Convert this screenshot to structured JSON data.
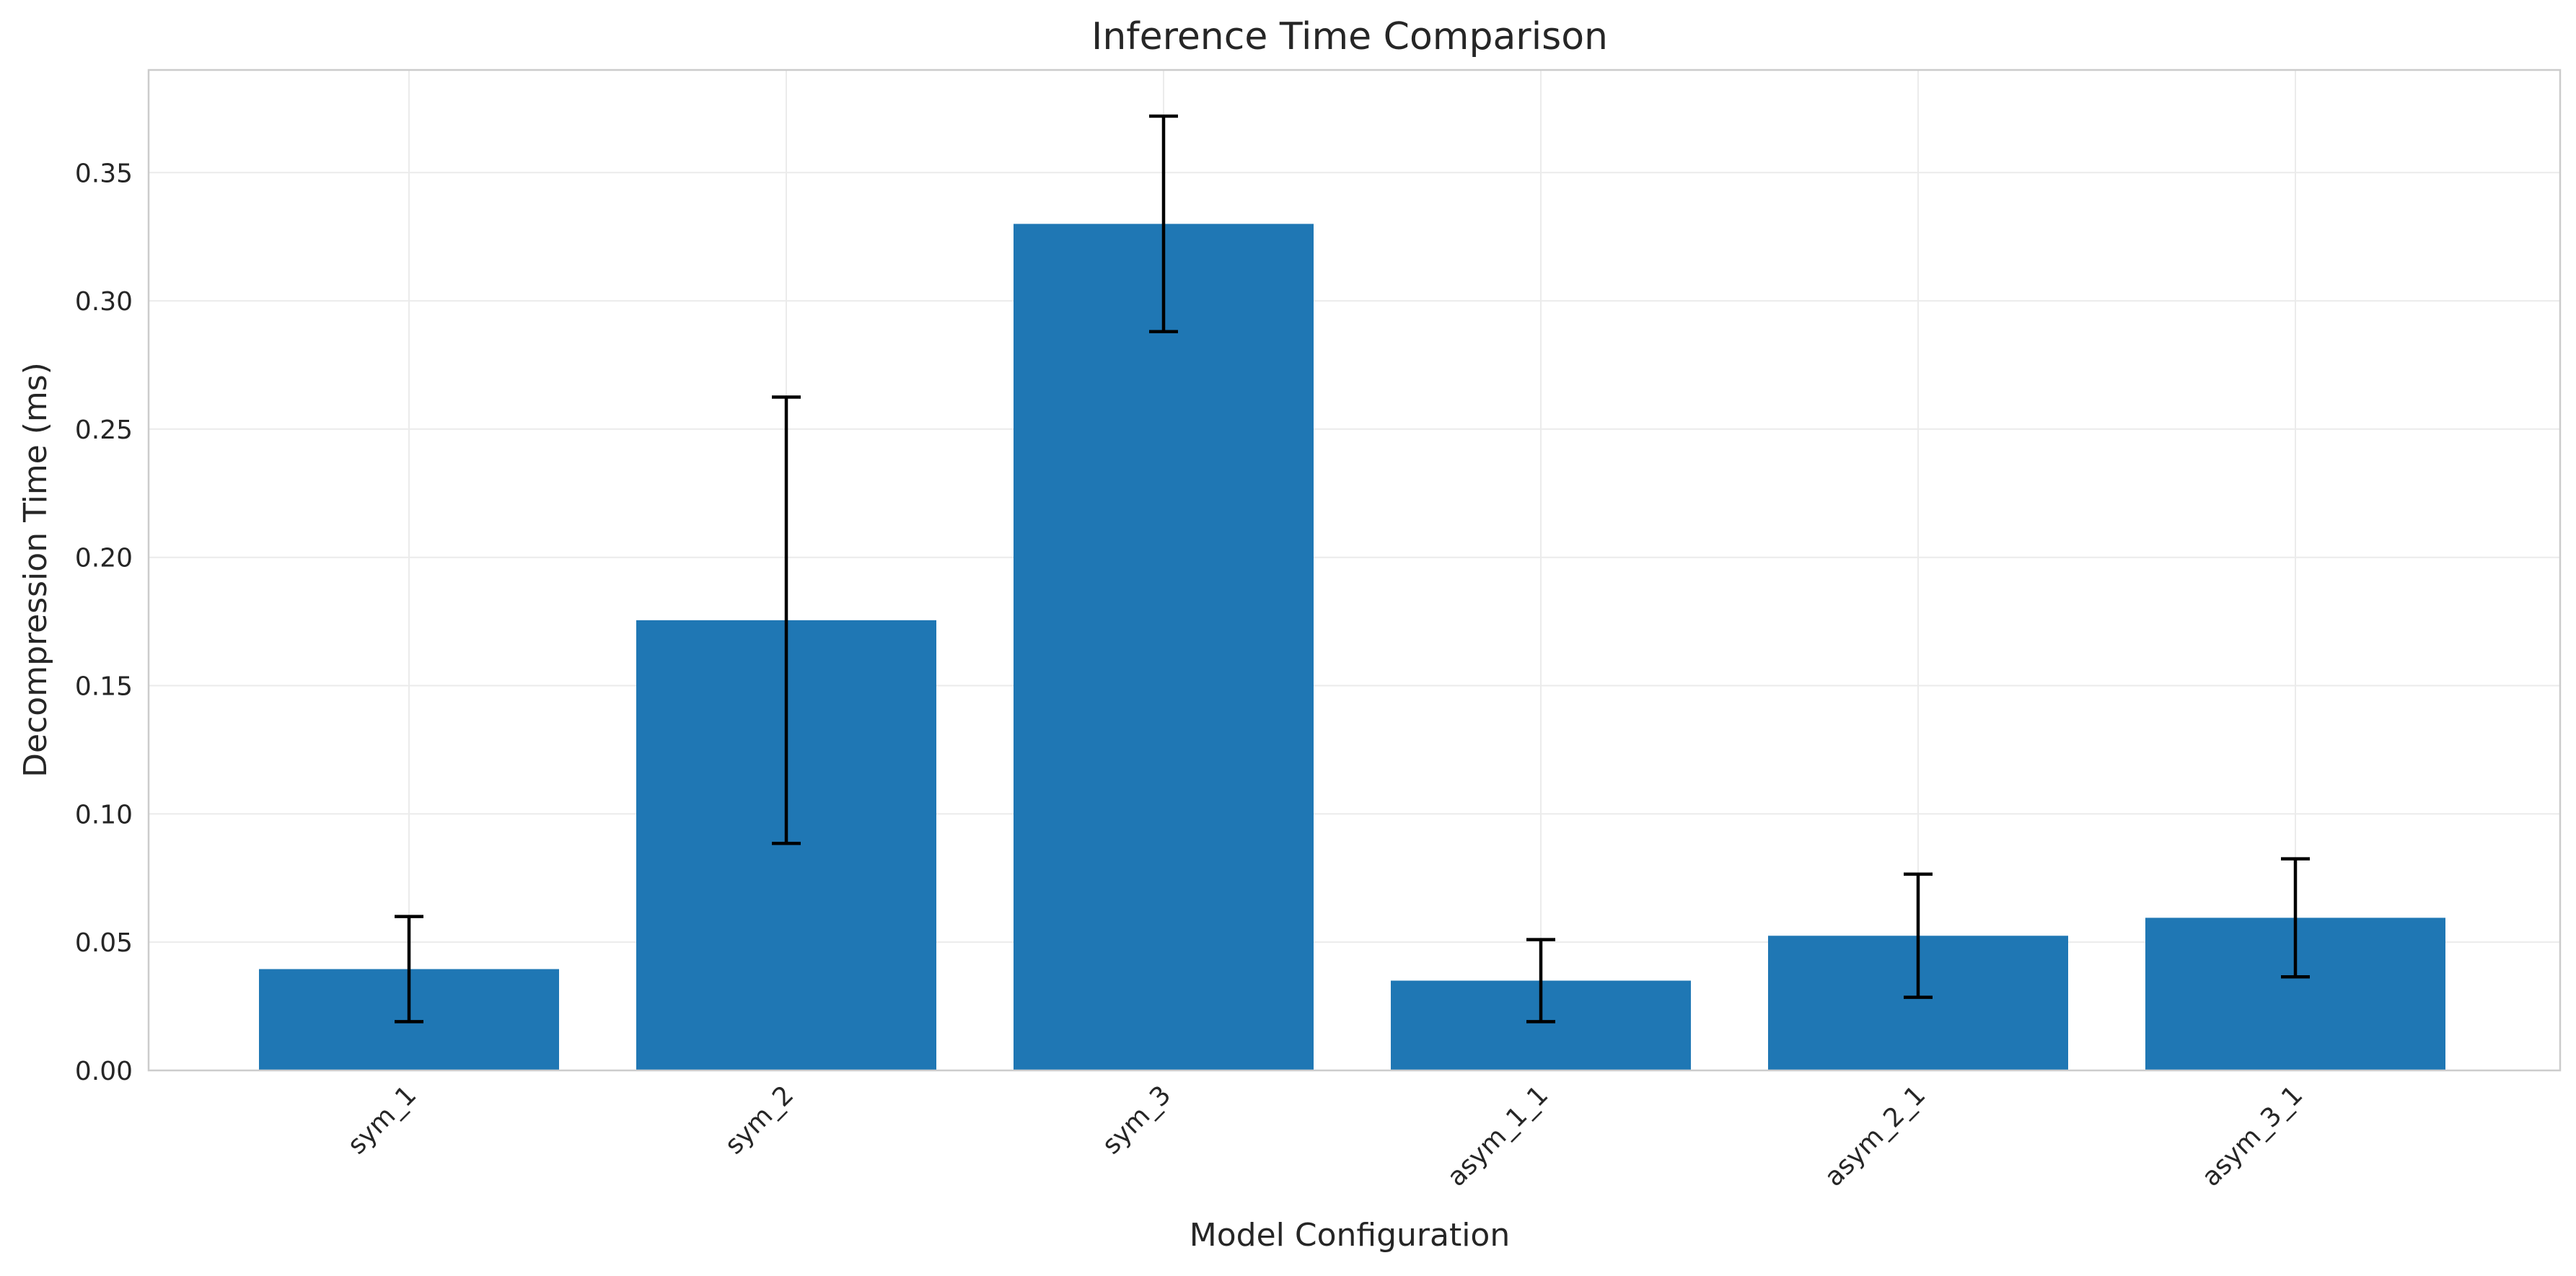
{
  "chart_data": {
    "type": "bar",
    "title": "Inference Time Comparison",
    "xlabel": "Model Configuration",
    "ylabel": "Decompression Time (ms)",
    "categories": [
      "sym_1",
      "sym_2",
      "sym_3",
      "asym_1_1",
      "asym_2_1",
      "asym_3_1"
    ],
    "values": [
      0.0395,
      0.1755,
      0.33,
      0.035,
      0.0525,
      0.0595
    ],
    "errors": [
      0.0205,
      0.087,
      0.042,
      0.016,
      0.024,
      0.023
    ],
    "ylim": [
      0,
      0.39
    ],
    "yticks": [
      "0.00",
      "0.05",
      "0.10",
      "0.15",
      "0.20",
      "0.25",
      "0.30",
      "0.35"
    ],
    "ytick_values": [
      0,
      0.05,
      0.1,
      0.15,
      0.2,
      0.25,
      0.3,
      0.35
    ],
    "grid": true,
    "legend": "none",
    "colors": {
      "bar": "#1f77b4",
      "error_bar": "#000000",
      "grid": "#ebebeb",
      "axes_edge": "#cccccc"
    }
  }
}
